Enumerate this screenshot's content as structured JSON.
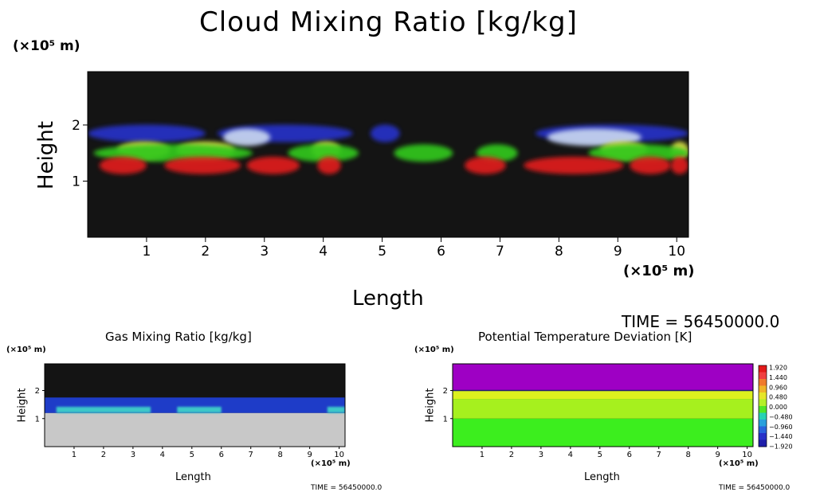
{
  "chart_data": [
    {
      "type": "heatmap",
      "title": "Cloud Mixing Ratio [kg/kg]",
      "xlabel": "Length",
      "ylabel": "Height",
      "x_unit": "(×10⁵ m)",
      "y_unit": "(×10⁵ m)",
      "xlim": [
        0,
        10.2
      ],
      "ylim": [
        0,
        2.95
      ],
      "xticks": [
        1,
        2,
        3,
        4,
        5,
        6,
        7,
        8,
        9,
        10
      ],
      "yticks": [
        1,
        2
      ],
      "time_label": "TIME = 56450000.0",
      "background_color": "#141414",
      "layers": [
        {
          "color": "#2833c8",
          "y": 1.85,
          "segments": [
            [
              0,
              2.0
            ],
            [
              2.2,
              4.5
            ],
            [
              4.8,
              5.3
            ],
            [
              7.6,
              10.2
            ]
          ]
        },
        {
          "color": "#c8d6f0",
          "y": 1.78,
          "segments": [
            [
              2.3,
              3.1
            ],
            [
              7.8,
              9.4
            ]
          ]
        },
        {
          "color": "#d7e046",
          "y": 1.55,
          "segments": [
            [
              0.5,
              1.4
            ],
            [
              1.5,
              2.5
            ],
            [
              3.8,
              4.3
            ],
            [
              8.7,
              9.5
            ],
            [
              9.9,
              10.2
            ]
          ]
        },
        {
          "color": "#32c81e",
          "y": 1.5,
          "segments": [
            [
              0.1,
              2.8
            ],
            [
              3.4,
              4.6
            ],
            [
              5.2,
              6.2
            ],
            [
              6.6,
              7.3
            ],
            [
              8.5,
              10.2
            ]
          ]
        },
        {
          "color": "#e01e1e",
          "y": 1.28,
          "segments": [
            [
              0.2,
              1.0
            ],
            [
              1.3,
              2.6
            ],
            [
              2.7,
              3.6
            ],
            [
              3.9,
              4.3
            ],
            [
              6.4,
              7.1
            ],
            [
              7.4,
              9.1
            ],
            [
              9.2,
              9.9
            ],
            [
              9.9,
              10.2
            ]
          ]
        }
      ]
    },
    {
      "type": "heatmap",
      "title": "Gas Mixing Ratio [kg/kg]",
      "xlabel": "Length",
      "ylabel": "Height",
      "x_unit": "(×10⁵ m)",
      "y_unit": "(×10⁵ m)",
      "xlim": [
        0,
        10.2
      ],
      "ylim": [
        0,
        2.95
      ],
      "xticks": [
        1,
        2,
        3,
        4,
        5,
        6,
        7,
        8,
        9,
        10
      ],
      "yticks": [
        1,
        2
      ],
      "time_label": "TIME = 56450000.0",
      "background_color": "#141414",
      "layers": [
        {
          "color": "#c8c8c8",
          "y_range": [
            0,
            1.2
          ],
          "segments": [
            [
              0,
              10.2
            ]
          ]
        },
        {
          "color": "#1e3cc8",
          "y_range": [
            1.2,
            1.75
          ],
          "segments": [
            [
              0,
              10.2
            ]
          ]
        },
        {
          "color": "#3cc8c8",
          "y_range": [
            1.2,
            1.42
          ],
          "segments": [
            [
              0.4,
              3.6
            ],
            [
              4.5,
              6.0
            ],
            [
              9.6,
              10.2
            ]
          ]
        }
      ]
    },
    {
      "type": "heatmap",
      "title": "Potential Temperature Deviation [K]",
      "xlabel": "Length",
      "ylabel": "Height",
      "x_unit": "(×10⁵ m)",
      "y_unit": "(×10⁵ m)",
      "xlim": [
        0,
        10.2
      ],
      "ylim": [
        0,
        2.95
      ],
      "xticks": [
        1,
        2,
        3,
        4,
        5,
        6,
        7,
        8,
        9,
        10
      ],
      "yticks": [
        1,
        2
      ],
      "time_label": "TIME = 56450000.0",
      "layers": [
        {
          "color": "#3cee1e",
          "y_range": [
            0,
            1.0
          ]
        },
        {
          "color": "#a6f01e",
          "y_range": [
            1.0,
            1.7
          ]
        },
        {
          "color": "#dcf01e",
          "y_range": [
            1.7,
            2.0
          ]
        },
        {
          "color": "#9e00c4",
          "y_range": [
            2.0,
            2.95
          ]
        }
      ],
      "colorbar": {
        "labels": [
          "1.920",
          "1.440",
          "0.960",
          "0.480",
          "0.000",
          "−0.480",
          "−0.960",
          "−1.440",
          "−1.920"
        ],
        "colors": [
          "#e31a1a",
          "#f04040",
          "#f07a2c",
          "#f0b428",
          "#e6e628",
          "#b4f028",
          "#50e628",
          "#28d2b4",
          "#28a0dc",
          "#2864dc",
          "#2832c8",
          "#1e1eaa"
        ]
      }
    }
  ]
}
